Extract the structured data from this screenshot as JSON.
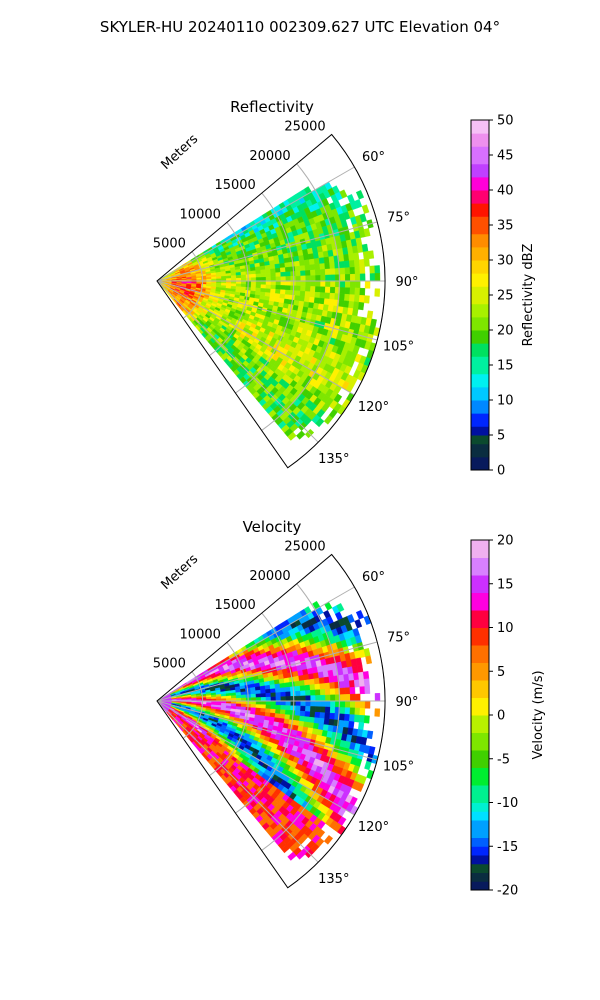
{
  "figure": {
    "suptitle": "SKYLER-HU  20240110  002309.627 UTC Elevation 04°"
  },
  "colors": {
    "grid": "#b0b0b0",
    "refl_stops": [
      [
        0,
        "#081a5c"
      ],
      [
        2,
        "#0a2d40"
      ],
      [
        4,
        "#0b4a2e"
      ],
      [
        5,
        "#0010a0"
      ],
      [
        6,
        "#0026ff"
      ],
      [
        8,
        "#0088ff"
      ],
      [
        10,
        "#00c8ff"
      ],
      [
        12,
        "#00f0f0"
      ],
      [
        14,
        "#00f0a0"
      ],
      [
        16,
        "#00e060"
      ],
      [
        18,
        "#40d000"
      ],
      [
        20,
        "#7ee600"
      ],
      [
        22,
        "#a8f000"
      ],
      [
        24,
        "#d8f000"
      ],
      [
        26,
        "#fff000"
      ],
      [
        28,
        "#ffd500"
      ],
      [
        30,
        "#ffb000"
      ],
      [
        32,
        "#ff8c00"
      ],
      [
        34,
        "#ff5000"
      ],
      [
        36,
        "#ff1400"
      ],
      [
        38,
        "#ff0070"
      ],
      [
        40,
        "#ff00d8"
      ],
      [
        42,
        "#c040ff"
      ],
      [
        44,
        "#d870ff"
      ],
      [
        46,
        "#ee90ee"
      ],
      [
        48,
        "#f6c0f6"
      ],
      [
        50,
        "#fff0ff"
      ]
    ],
    "vel_stops": [
      [
        -20,
        "#081a5c"
      ],
      [
        -19,
        "#0a2d40"
      ],
      [
        -18,
        "#0b4a2e"
      ],
      [
        -17,
        "#0010a0"
      ],
      [
        -16,
        "#0026ff"
      ],
      [
        -15,
        "#0060ff"
      ],
      [
        -14,
        "#00a0ff"
      ],
      [
        -12,
        "#00e0ff"
      ],
      [
        -11,
        "#00f0d0"
      ],
      [
        -10,
        "#00f090"
      ],
      [
        -8,
        "#00ee30"
      ],
      [
        -6,
        "#40d000"
      ],
      [
        -4,
        "#7ee600"
      ],
      [
        -2,
        "#b8f000"
      ],
      [
        0,
        "#fff000"
      ],
      [
        2,
        "#ffc800"
      ],
      [
        4,
        "#ff9800"
      ],
      [
        6,
        "#ff7000"
      ],
      [
        8,
        "#ff3000"
      ],
      [
        10,
        "#ff0040"
      ],
      [
        12,
        "#ff00e0"
      ],
      [
        14,
        "#cc30ff"
      ],
      [
        16,
        "#d880ff"
      ],
      [
        18,
        "#f0b0f0"
      ],
      [
        20,
        "#fff0ff"
      ]
    ]
  },
  "chart_data": [
    {
      "type": "polar-sector",
      "title": "Reflectivity",
      "radial_label": "Meters",
      "radial_ticks": [
        5000,
        10000,
        15000,
        20000,
        25000
      ],
      "rmax": 25000,
      "theta_range_deg": [
        50,
        145
      ],
      "theta_ticks": [
        "60°",
        "75°",
        "90°",
        "105°",
        "120°",
        "135°"
      ],
      "theta_tick_values": [
        60,
        75,
        90,
        105,
        120,
        135
      ],
      "colorbar": {
        "label": "Reflectivity dBZ",
        "range": [
          0,
          50
        ],
        "ticks": [
          "0",
          "5",
          "10",
          "15",
          "20",
          "25",
          "30",
          "35",
          "40",
          "45",
          "50"
        ]
      },
      "field_pattern": {
        "mode": "reflectivity",
        "base": 23,
        "near_core_value": 36,
        "data_sector_deg": [
          58,
          140
        ]
      }
    },
    {
      "type": "polar-sector",
      "title": "Velocity",
      "radial_label": "Meters",
      "radial_ticks": [
        5000,
        10000,
        15000,
        20000,
        25000
      ],
      "rmax": 25000,
      "theta_range_deg": [
        50,
        145
      ],
      "theta_ticks": [
        "60°",
        "75°",
        "90°",
        "105°",
        "120°",
        "135°"
      ],
      "theta_tick_values": [
        60,
        75,
        90,
        105,
        120,
        135
      ],
      "colorbar": {
        "label": "Velocity (m/s)",
        "range": [
          -20,
          20
        ],
        "ticks": [
          "-20",
          "-15",
          "-10",
          "-5",
          "0",
          "5",
          "10",
          "15",
          "20"
        ]
      },
      "field_pattern": {
        "mode": "velocity",
        "data_sector_deg": [
          58,
          140
        ]
      }
    }
  ]
}
